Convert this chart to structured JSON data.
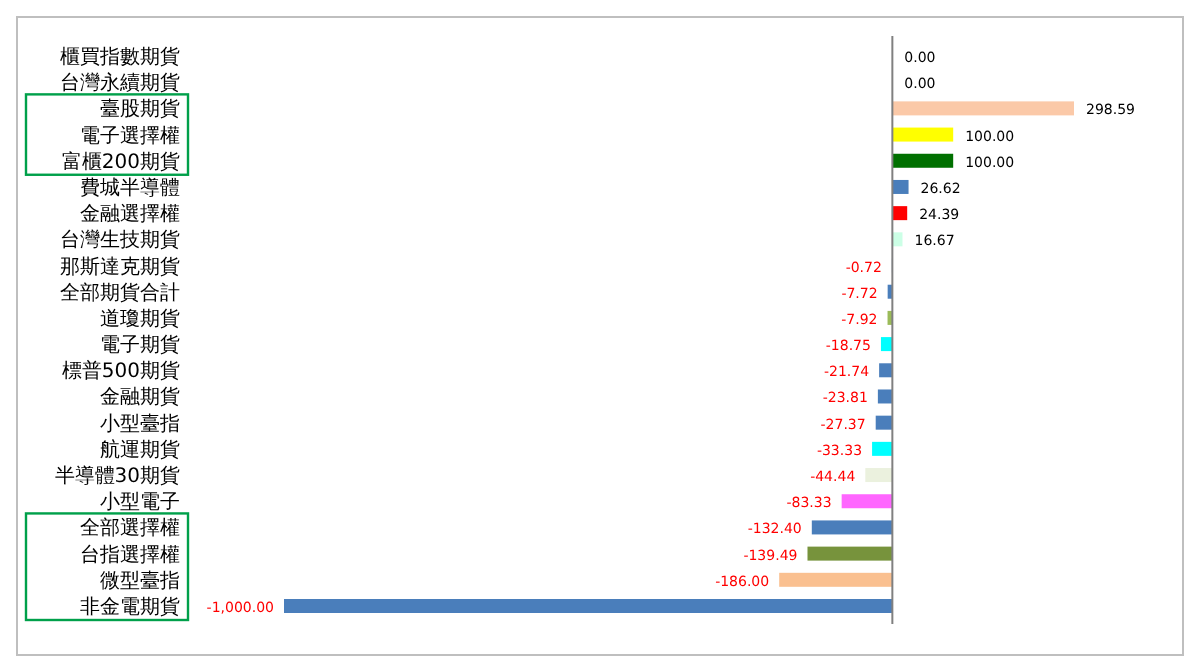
{
  "chart_data": {
    "type": "bar",
    "orientation": "horizontal",
    "categories": [
      "櫃買指數期貨",
      "台灣永續期貨",
      "臺股期貨",
      "電子選擇權",
      "富櫃200期貨",
      "費城半導體",
      "金融選擇權",
      "台灣生技期貨",
      "那斯達克期貨",
      "全部期貨合計",
      "道瓊期貨",
      "電子期貨",
      "標普500期貨",
      "金融期貨",
      "小型臺指",
      "航運期貨",
      "半導體30期貨",
      "小型電子",
      "全部選擇權",
      "台指選擇權",
      "微型臺指",
      "非金電期貨"
    ],
    "values": [
      0,
      0,
      298.59,
      100,
      100,
      26.62,
      24.39,
      16.67,
      -0.72,
      -7.72,
      -7.92,
      -18.75,
      -21.74,
      -23.81,
      -27.37,
      -33.33,
      -44.44,
      -83.33,
      -132.4,
      -139.49,
      -186,
      -1000
    ],
    "colors": [
      "#4a7ebb",
      "#4a7ebb",
      "#fbc9a8",
      "#ffff00",
      "#007000",
      "#4a7ebb",
      "#ff0000",
      "#ccffe6",
      "#4a7ebb",
      "#4a7ebb",
      "#9bbb59",
      "#00ffff",
      "#4a7ebb",
      "#4a7ebb",
      "#4a7ebb",
      "#00ffff",
      "#ebf1de",
      "#ff66ff",
      "#4a7ebb",
      "#77933c",
      "#fac090",
      "#4a7ebb"
    ],
    "value_labels": [
      "0.00",
      "0.00",
      "298.59",
      "100.00",
      "100.00",
      "26.62",
      "24.39",
      "16.67",
      "-0.72",
      "-7.72",
      "-7.92",
      "-18.75",
      "-21.74",
      "-23.81",
      "-27.37",
      "-33.33",
      "-44.44",
      "-83.33",
      "-132.40",
      "-139.49",
      "-186.00",
      "-1,000.00"
    ]
  }
}
